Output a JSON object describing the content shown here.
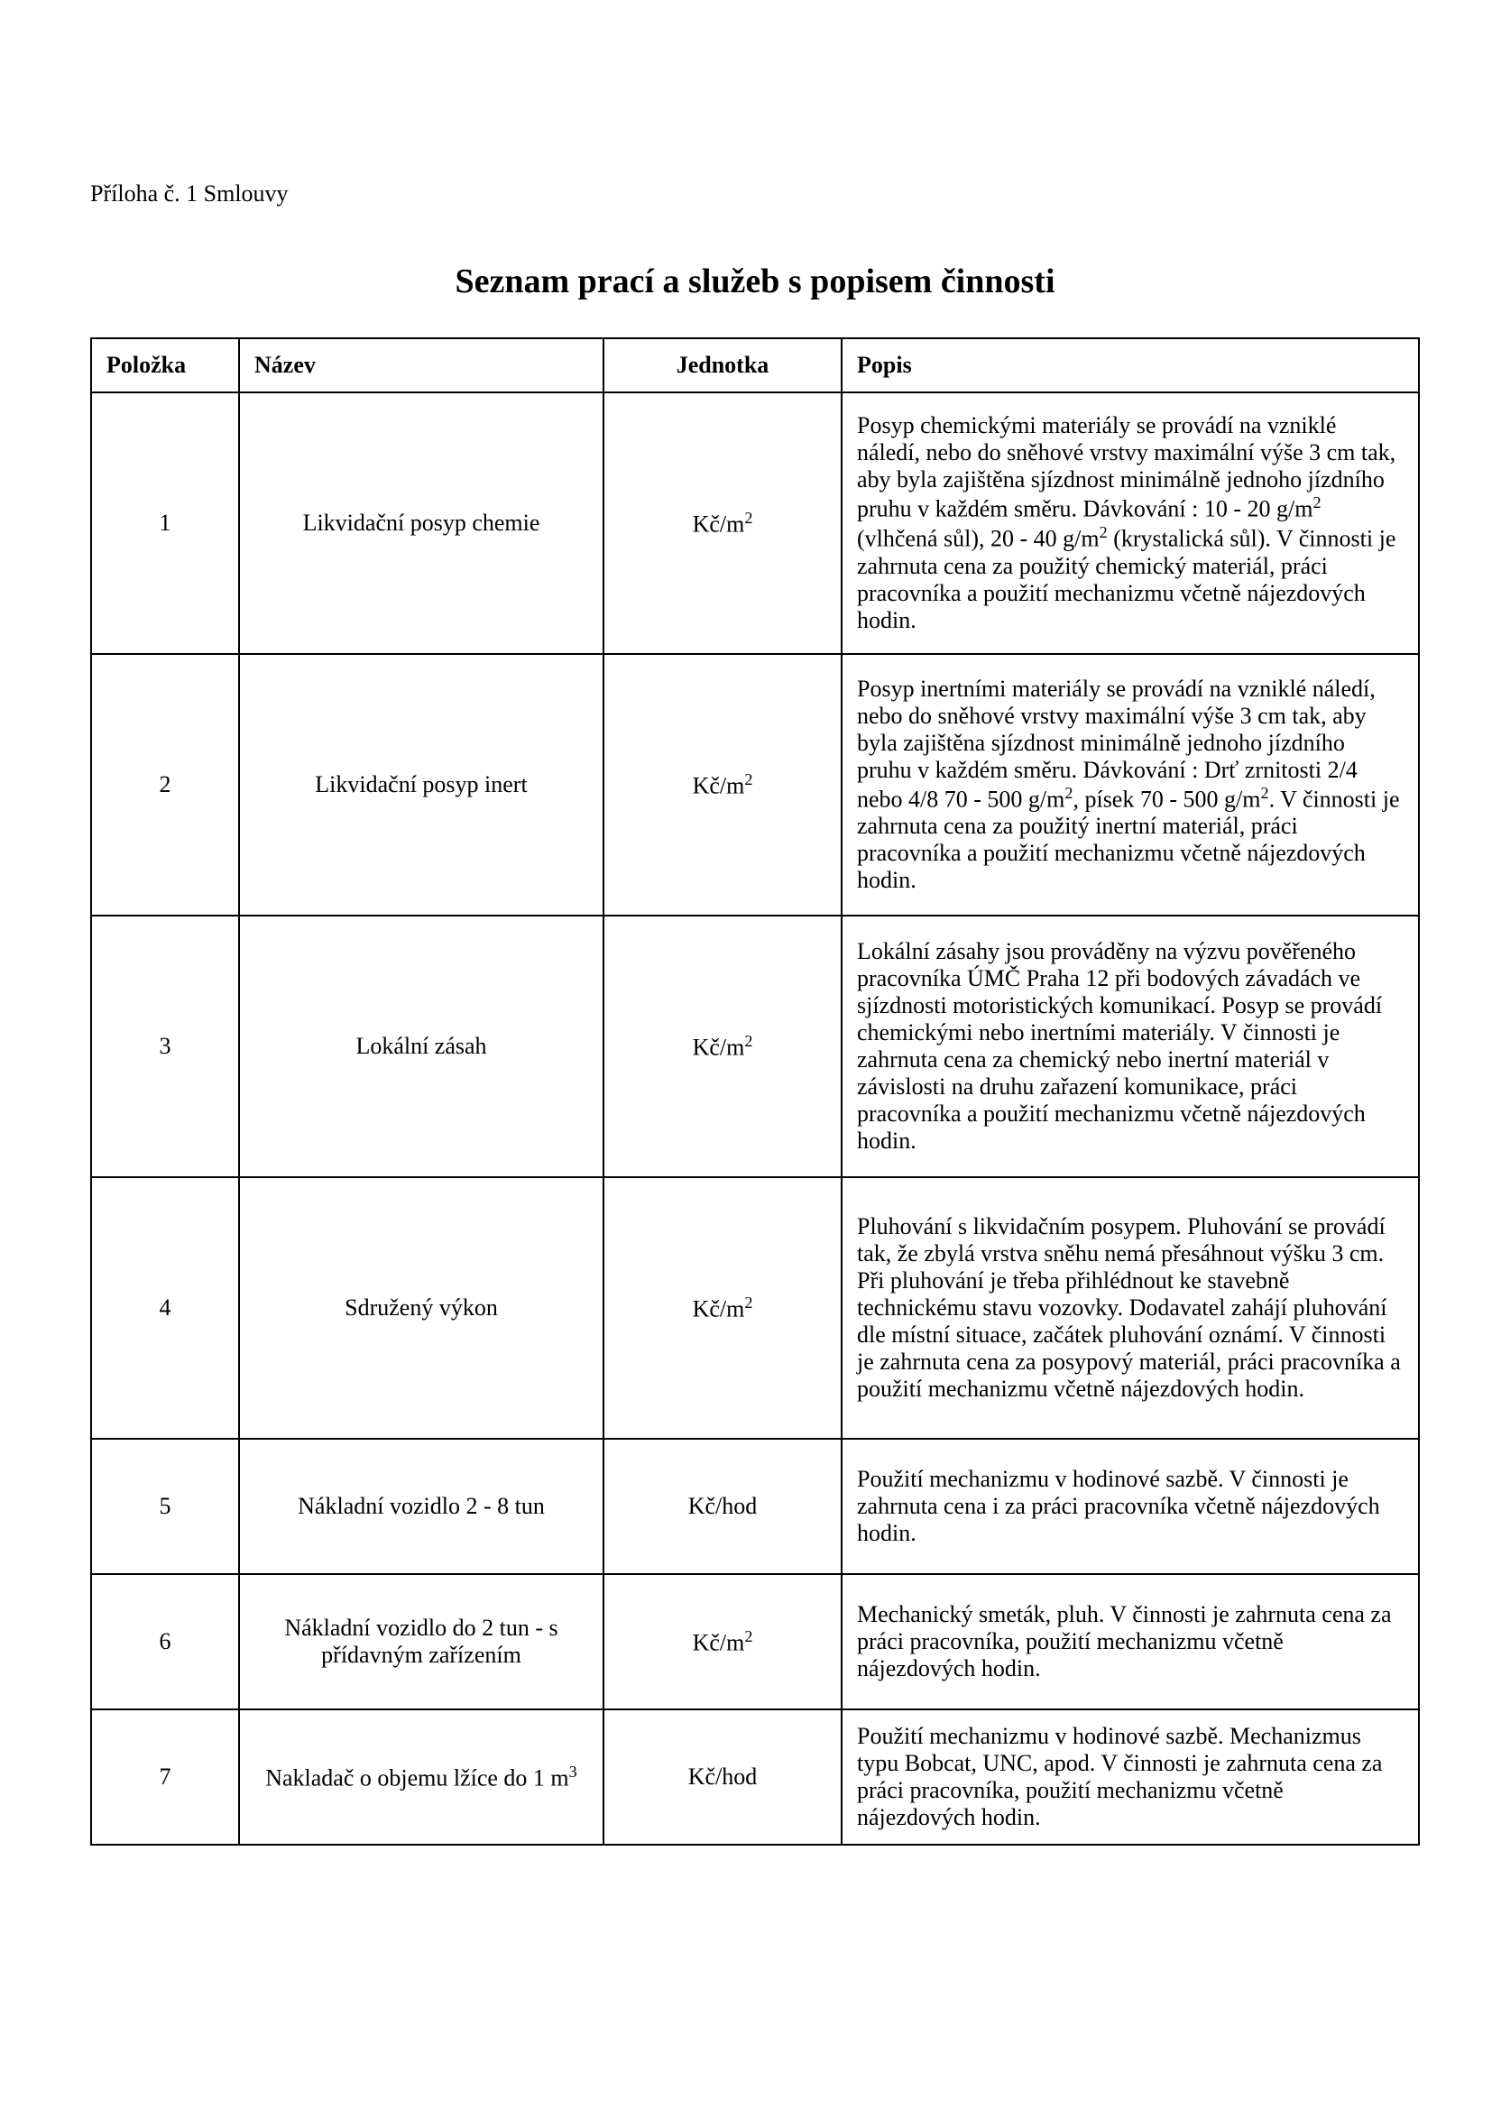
{
  "document": {
    "attachment_label": "Příloha č. 1 Smlouvy",
    "title": "Seznam prací a služeb s popisem činnosti",
    "columns": {
      "item": "Položka",
      "name": "Název",
      "unit": "Jednotka",
      "desc": "Popis"
    },
    "rows": [
      {
        "item": "1",
        "name": "Likvidační posyp chemie",
        "unit_html": "Kč/m<sup>2</sup>",
        "desc_html": "Posyp chemickými materiály se provádí na vzniklé náledí, nebo do sněhové vrstvy maximální výše 3 cm tak, aby byla zajištěna sjízdnost minimálně jednoho jízdního pruhu v každém směru. Dávkování : 10 - 20 g/m<sup>2</sup> (vlhčená sůl), 20 - 40 g/m<sup>2</sup> (krystalická sůl). V činnosti je zahrnuta cena za použitý chemický materiál, práci pracovníka a použití mechanizmu včetně nájezdových hodin.",
        "height_class": "tall"
      },
      {
        "item": "2",
        "name": "Likvidační posyp inert",
        "unit_html": "Kč/m<sup>2</sup>",
        "desc_html": "Posyp inertními materiály se provádí na vzniklé náledí, nebo do sněhové vrstvy maximální výše 3 cm tak, aby byla zajištěna sjízdnost minimálně jednoho jízdního pruhu v každém směru. Dávkování : Drť zrnitosti 2/4 nebo 4/8 70 - 500 g/m<sup>2</sup>, písek 70 - 500 g/m<sup>2</sup>. V činnosti je zahrnuta cena za použitý inertní materiál, práci pracovníka a použití mechanizmu včetně nájezdových hodin.",
        "height_class": "tall"
      },
      {
        "item": "3",
        "name": "Lokální zásah",
        "unit_html": "Kč/m<sup>2</sup>",
        "desc_html": "Lokální zásahy jsou prováděny na výzvu pověřeného pracovníka ÚMČ Praha 12 při bodových závadách ve sjízdnosti motoristických komunikací. Posyp se provádí chemickými nebo inertními materiály. V činnosti je zahrnuta cena za chemický nebo inertní materiál v závislosti na druhu zařazení komunikace, práci pracovníka a použití mechanizmu včetně nájezdových hodin.",
        "height_class": "tall"
      },
      {
        "item": "4",
        "name": "Sdružený výkon",
        "unit_html": "Kč/m<sup>2</sup>",
        "desc_html": "Pluhování s likvidačním posypem. Pluhování se provádí tak, že zbylá vrstva sněhu nemá přesáhnout výšku 3 cm. Při pluhování je třeba přihlédnout ke stavebně technickému stavu vozovky. Dodavatel zahájí pluhování dle místní situace, začátek pluhování oznámí. V činnosti je zahrnuta cena za posypový materiál, práci pracovníka a použití mechanizmu včetně nájezdových hodin.",
        "height_class": "tall"
      },
      {
        "item": "5",
        "name": "Nákladní vozidlo  2 -   8 tun",
        "unit_html": "Kč/hod",
        "desc_html": "Použití mechanizmu v hodinové sazbě. V činnosti je zahrnuta cena i za práci pracovníka včetně nájezdových hodin.",
        "height_class": "short"
      },
      {
        "item": "6",
        "name": "Nákladní vozidlo do 2 tun - s přídavným zařízením",
        "unit_html": "Kč/m<sup>2</sup>",
        "desc_html": "Mechanický smeták, pluh. V činnosti je zahrnuta cena za práci pracovníka, použití mechanizmu včetně nájezdových hodin.",
        "height_class": "short"
      },
      {
        "item": "7",
        "name_html": "Nakladač o objemu lžíce do 1 m<sup>3</sup>",
        "unit_html": "Kč/hod",
        "desc_html": "Použití mechanizmu v hodinové sazbě. Mechanizmus typu Bobcat, UNC, apod. V činnosti je zahrnuta cena za práci pracovníka, použití mechanizmu včetně nájezdových hodin.",
        "height_class": "short"
      }
    ]
  }
}
